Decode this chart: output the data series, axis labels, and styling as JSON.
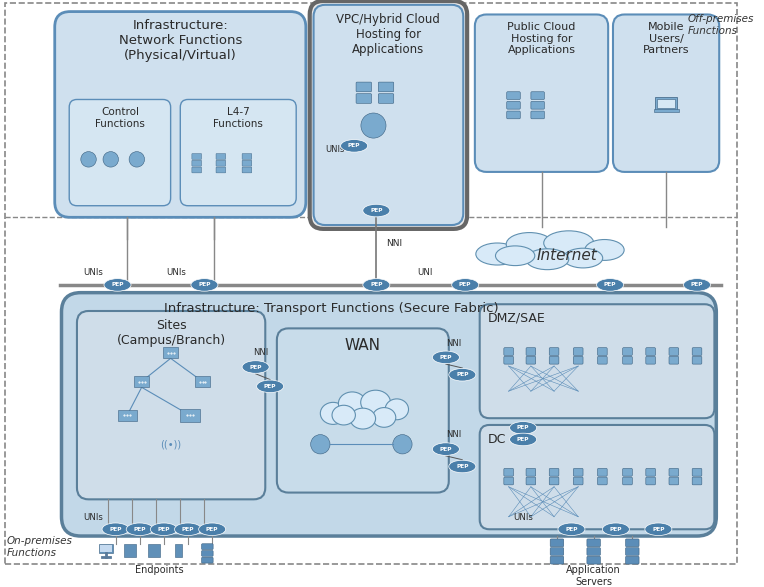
{
  "bg_color": "#ffffff",
  "c_light_blue": "#cfe0ee",
  "c_mid_blue": "#b8cfdf",
  "c_dark_blue": "#5b8db8",
  "c_border_blue": "#4a7a9b",
  "c_pep_fill": "#4a7faa",
  "c_pep_text": "#ffffff",
  "c_transport_fill": "#c2d8e8",
  "c_transport_border": "#5a7f9a",
  "c_sub_fill": "#d5e6f2",
  "c_inner_fill": "#dde8f2",
  "c_vpc_outer": "#6a6a6a",
  "c_line": "#5a7a9a",
  "c_text": "#2a2a2a",
  "c_dash": "#888888",
  "c_cloud_fill": "#dce9f4",
  "c_cloud_border": "#6090b0",
  "title_network": "Infrastructure:\nNetwork Functions\n(Physical/Virtual)",
  "title_transport": "Infrastructure: Transport Functions (Secure Fabric)",
  "label_control": "Control\nFunctions",
  "label_l47": "L4-7\nFunctions",
  "label_vpc": "VPC/Hybrid Cloud\nHosting for\nApplications",
  "label_public_cloud": "Public Cloud\nHosting for\nApplications",
  "label_mobile": "Mobile\nUsers/\nPartners",
  "label_internet": "Internet",
  "label_sites": "Sites\n(Campus/Branch)",
  "label_wan": "WAN",
  "label_dmz": "DMZ/SAE",
  "label_dc": "DC",
  "label_off_premises": "Off-premises\nFunctions",
  "label_on_premises": "On-premises\nFunctions",
  "label_endpoints": "Endpoints",
  "label_app_servers": "Application\nServers",
  "label_unis": "UNIs",
  "label_uni": "UNI",
  "label_nni": "NNI",
  "label_pep": "PEP"
}
